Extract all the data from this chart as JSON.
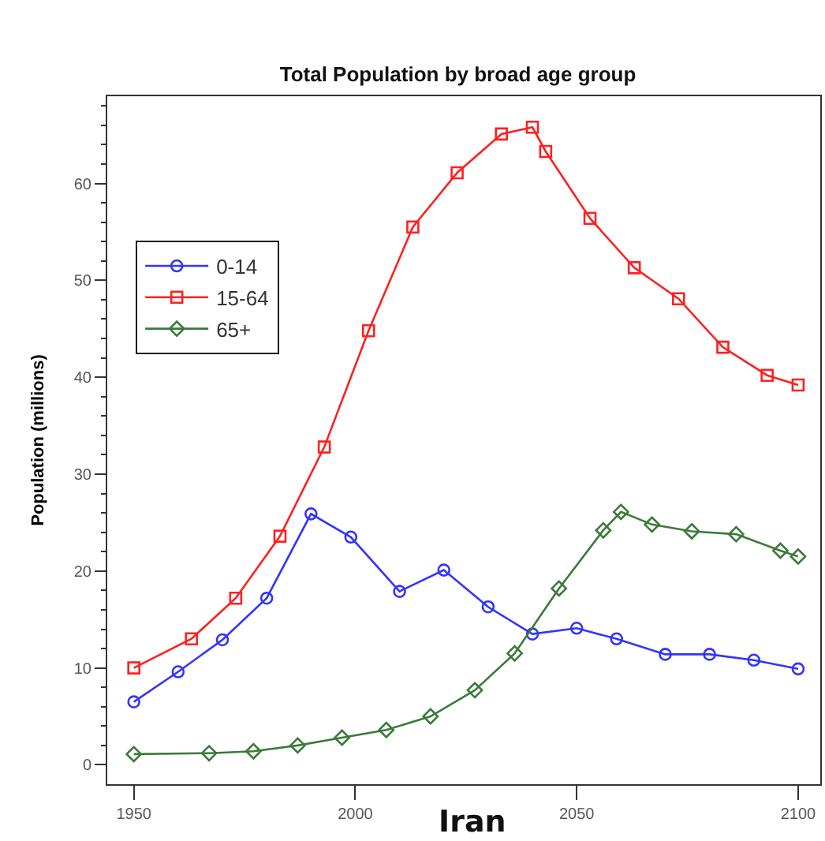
{
  "chart_data": {
    "type": "line",
    "title": "Total Population by broad age group",
    "xlabel": "Iran",
    "ylabel": "Population (millions)",
    "xlim": [
      1944,
      2105
    ],
    "xticks": [
      1950,
      2000,
      2050,
      2100
    ],
    "ylim": [
      -2,
      69
    ],
    "yticks": [
      0,
      {
        "value": 2,
        "label": null
      },
      {
        "value": 4,
        "label": null
      },
      {
        "value": 6,
        "label": null
      },
      {
        "value": 8,
        "label": null
      },
      10,
      {
        "value": 12,
        "label": null
      },
      {
        "value": 14,
        "label": null
      },
      {
        "value": 16,
        "label": null
      },
      {
        "value": 18,
        "label": null
      },
      20,
      {
        "value": 22,
        "label": null
      },
      {
        "value": 24,
        "label": null
      },
      {
        "value": 26,
        "label": null
      },
      {
        "value": 28,
        "label": null
      },
      30,
      {
        "value": 32,
        "label": null
      },
      {
        "value": 34,
        "label": null
      },
      {
        "value": 36,
        "label": null
      },
      {
        "value": 38,
        "label": null
      },
      40,
      {
        "value": 42,
        "label": null
      },
      {
        "value": 44,
        "label": null
      },
      {
        "value": 46,
        "label": null
      },
      {
        "value": 48,
        "label": null
      },
      50,
      {
        "value": 52,
        "label": null
      },
      {
        "value": 54,
        "label": null
      },
      {
        "value": 56,
        "label": null
      },
      {
        "value": 58,
        "label": null
      },
      60,
      {
        "value": 62,
        "label": null
      },
      {
        "value": 64,
        "label": null
      },
      {
        "value": 66,
        "label": null
      },
      {
        "value": 68,
        "label": null
      }
    ],
    "grid": false,
    "legend": "top left",
    "line_style": "solid",
    "series": [
      {
        "name": "0-14",
        "color": "#3333ff",
        "marker": "circle",
        "x": [
          1950,
          1960,
          1970,
          1980,
          1990,
          1999,
          2010,
          2020,
          2030,
          2040,
          2050,
          2059,
          2070,
          2080,
          2090,
          2100
        ],
        "values": [
          6.5,
          9.6,
          12.9,
          17.2,
          25.9,
          23.5,
          17.9,
          20.1,
          16.3,
          13.5,
          14.1,
          13.0,
          11.4,
          11.4,
          10.8,
          9.9
        ]
      },
      {
        "name": "15-64",
        "color": "#ff2020",
        "marker": "square",
        "x": [
          1950,
          1963,
          1973,
          1983,
          1993,
          2003,
          2013,
          2023,
          2033,
          2040,
          2043,
          2053,
          2063,
          2073,
          2083,
          2093,
          2100
        ],
        "values": [
          10.0,
          13.0,
          17.2,
          23.6,
          32.8,
          44.8,
          55.5,
          61.1,
          65.1,
          65.8,
          63.3,
          56.4,
          51.3,
          48.1,
          43.1,
          40.2,
          39.2
        ]
      },
      {
        "name": "65+",
        "color": "#3a7a3a",
        "marker": "diamond",
        "x": [
          1950,
          1967,
          1977,
          1987,
          1997,
          2007,
          2017,
          2027,
          2036,
          2046,
          2056,
          2060,
          2067,
          2076,
          2086,
          2096,
          2100
        ],
        "values": [
          1.1,
          1.2,
          1.4,
          2.0,
          2.8,
          3.6,
          5.0,
          7.7,
          11.5,
          18.2,
          24.2,
          26.1,
          24.8,
          24.1,
          23.8,
          22.1,
          21.5
        ]
      }
    ]
  }
}
